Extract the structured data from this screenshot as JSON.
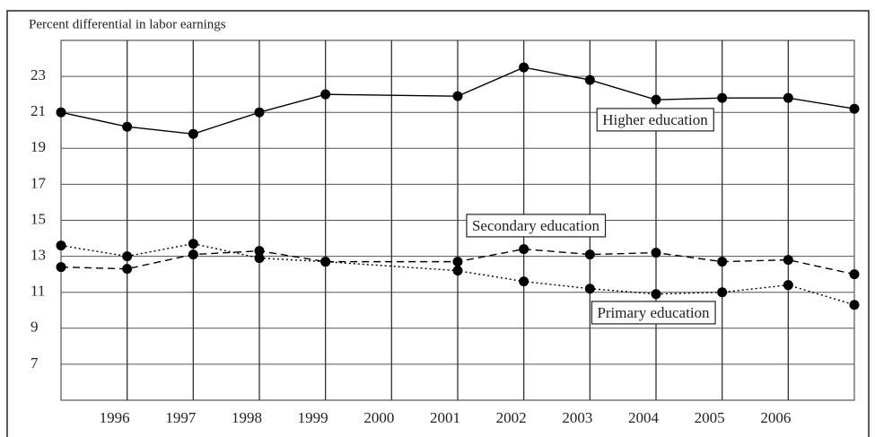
{
  "chart_data": {
    "type": "line",
    "title": "Percent differential in labor earnings",
    "x": [
      1995,
      1996,
      1997,
      1998,
      1999,
      2001,
      2002,
      2003,
      2004,
      2005,
      2006,
      2007
    ],
    "xlim": [
      1995,
      2007
    ],
    "xticks": [
      1996,
      1997,
      1998,
      1999,
      2000,
      2001,
      2002,
      2003,
      2004,
      2005,
      2006
    ],
    "ylim": [
      5,
      25
    ],
    "yticks": [
      7,
      9,
      11,
      13,
      15,
      17,
      19,
      21,
      23
    ],
    "grid": true,
    "series": [
      {
        "name": "Higher education",
        "color": "#000000",
        "line_style": "solid",
        "values": [
          21,
          20.2,
          19.8,
          21,
          22,
          21.9,
          23.5,
          22.8,
          21.7,
          21.8,
          21.8,
          21.2
        ]
      },
      {
        "name": "Secondary education",
        "color": "#000000",
        "line_style": "dashed",
        "values": [
          12.4,
          12.3,
          13.1,
          13.3,
          12.7,
          12.7,
          13.4,
          13.1,
          13.2,
          12.7,
          12.8,
          12
        ]
      },
      {
        "name": "Primary education",
        "color": "#000000",
        "line_style": "dotted",
        "values": [
          13.6,
          13,
          13.7,
          12.9,
          12.7,
          12.2,
          11.6,
          11.2,
          10.9,
          11,
          11.4,
          10.3
        ]
      }
    ]
  }
}
